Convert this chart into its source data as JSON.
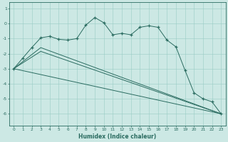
{
  "xlabel": "Humidex (Indice chaleur)",
  "bg_color": "#cce8e4",
  "line_color": "#2a6b60",
  "grid_color": "#99ccc4",
  "xlim": [
    -0.5,
    23.5
  ],
  "ylim": [
    -6.8,
    1.4
  ],
  "yticks": [
    1,
    0,
    -1,
    -2,
    -3,
    -4,
    -5,
    -6
  ],
  "xticks": [
    0,
    1,
    2,
    3,
    4,
    5,
    6,
    7,
    8,
    9,
    10,
    11,
    12,
    13,
    14,
    15,
    16,
    17,
    18,
    19,
    20,
    21,
    22,
    23
  ],
  "line1_x": [
    0,
    1,
    2,
    3,
    4,
    5,
    6,
    7,
    8,
    9,
    10,
    11,
    12,
    13,
    14,
    15,
    16,
    17,
    18,
    19,
    20,
    21,
    22,
    23
  ],
  "line1_y": [
    -3.0,
    -2.3,
    -1.6,
    -0.95,
    -0.85,
    -1.05,
    -1.1,
    -1.0,
    -0.1,
    0.4,
    0.05,
    -0.75,
    -0.65,
    -0.75,
    -0.25,
    -0.15,
    -0.25,
    -1.1,
    -1.55,
    -3.1,
    -4.6,
    -5.0,
    -5.2,
    -6.0
  ],
  "line2_x": [
    0,
    23
  ],
  "line2_y": [
    -3.0,
    -6.0
  ],
  "line3_x": [
    0,
    3,
    23
  ],
  "line3_y": [
    -3.0,
    -1.6,
    -6.0
  ],
  "line4_x": [
    0,
    3,
    23
  ],
  "line4_y": [
    -3.0,
    -1.85,
    -6.0
  ]
}
